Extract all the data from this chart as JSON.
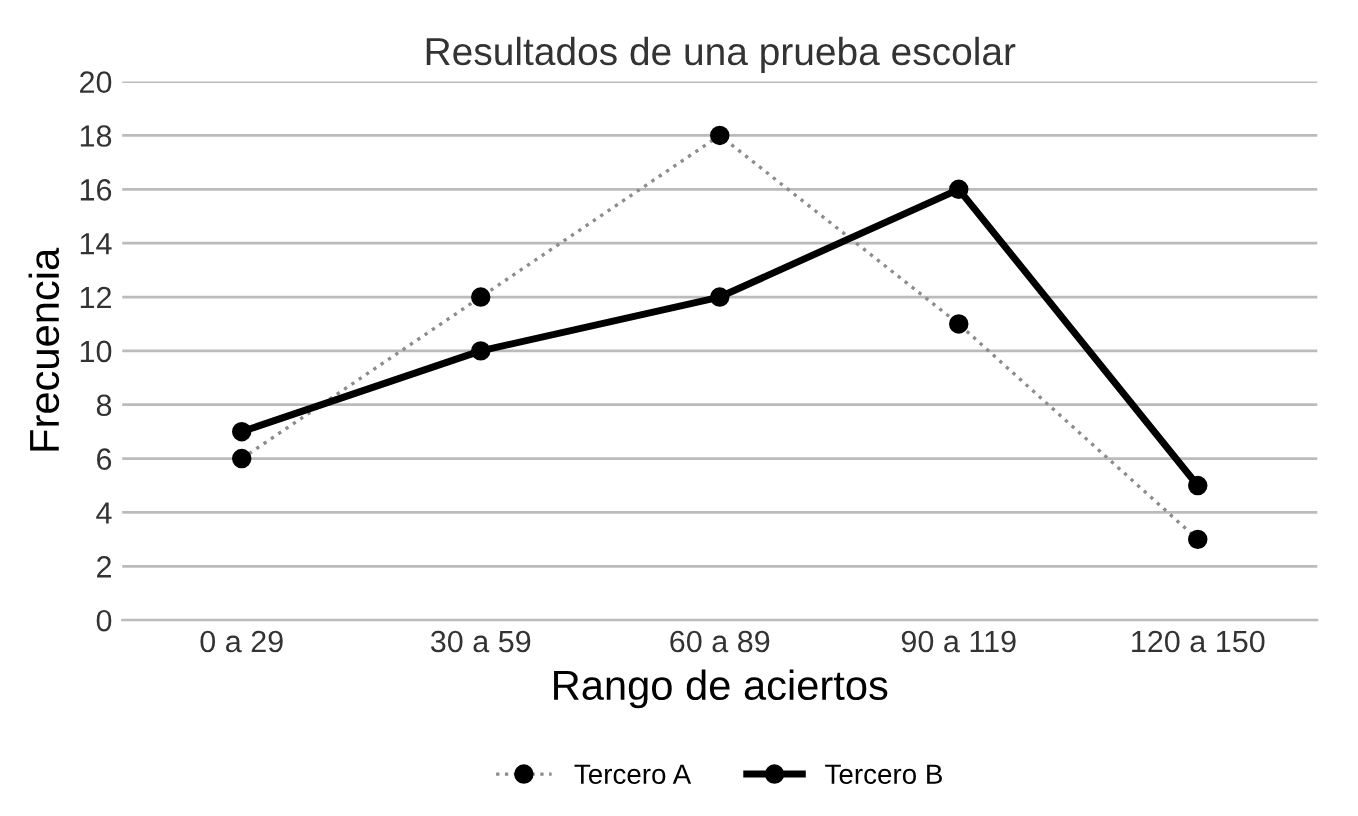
{
  "chart_data": {
    "type": "line",
    "title": "Resultados de una prueba escolar",
    "xlabel": "Rango de aciertos",
    "ylabel": "Frecuencia",
    "categories": [
      "0 a 29",
      "30 a 59",
      "60 a 89",
      "90 a 119",
      "120 a 150"
    ],
    "series": [
      {
        "name": "Tercero A",
        "color": "#8c8c8c",
        "values": [
          6,
          12,
          18,
          11,
          3
        ],
        "line_style": "dotted"
      },
      {
        "name": "Tercero B",
        "color": "#000000",
        "values": [
          7,
          10,
          12,
          16,
          5
        ],
        "line_style": "solid"
      }
    ],
    "ylim": [
      0,
      20
    ],
    "yticks": [
      0,
      2,
      4,
      6,
      8,
      10,
      12,
      14,
      16,
      18,
      20
    ],
    "grid": "y",
    "legend": "bottom",
    "marker": "circle"
  }
}
